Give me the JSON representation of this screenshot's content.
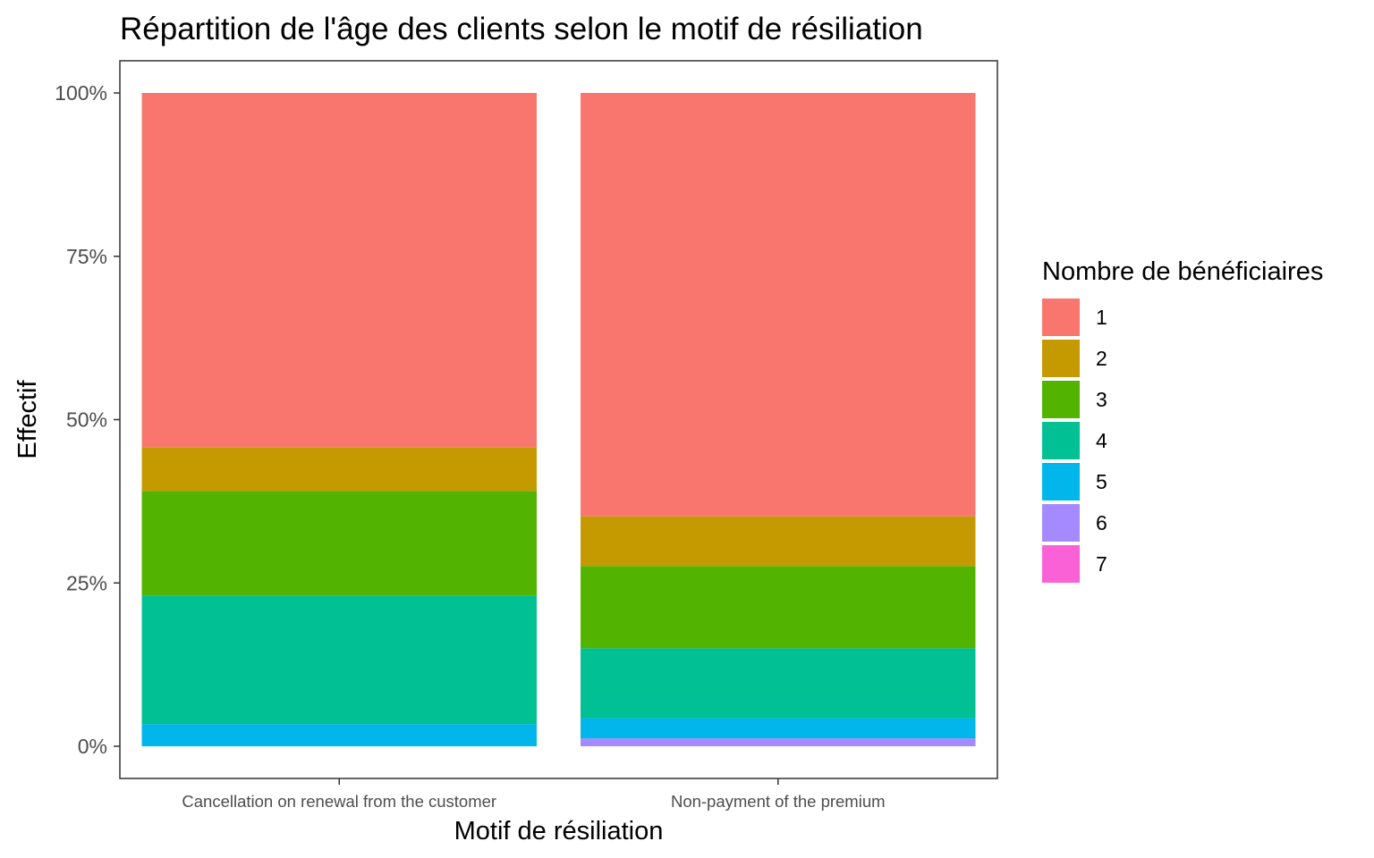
{
  "chart_data": {
    "type": "bar",
    "stacked": true,
    "normalized": true,
    "title": "Répartition de l'âge des clients selon le motif de résiliation",
    "xlabel": "Motif de résiliation",
    "ylabel": "Effectif",
    "categories": [
      "Cancellation on renewal from the customer",
      "Non-payment of the premium"
    ],
    "ylim": [
      0,
      1
    ],
    "yticks": [
      0,
      0.25,
      0.5,
      0.75,
      1
    ],
    "ytick_labels": [
      "0%",
      "25%",
      "50%",
      "75%",
      "100%"
    ],
    "grid": false,
    "legend": {
      "title": "Nombre de bénéficiaires",
      "position": "right"
    },
    "series": [
      {
        "name": "1",
        "color": "#F8766D",
        "values": [
          0.542,
          0.648
        ]
      },
      {
        "name": "2",
        "color": "#C49A00",
        "values": [
          0.067,
          0.076
        ]
      },
      {
        "name": "3",
        "color": "#53B400",
        "values": [
          0.16,
          0.126
        ]
      },
      {
        "name": "4",
        "color": "#00C094",
        "values": [
          0.197,
          0.107
        ]
      },
      {
        "name": "5",
        "color": "#00B6EB",
        "values": [
          0.034,
          0.031
        ]
      },
      {
        "name": "6",
        "color": "#A58AFF",
        "values": [
          0.0,
          0.012
        ]
      },
      {
        "name": "7",
        "color": "#FB61D7",
        "values": [
          0.0,
          0.0
        ]
      }
    ]
  }
}
